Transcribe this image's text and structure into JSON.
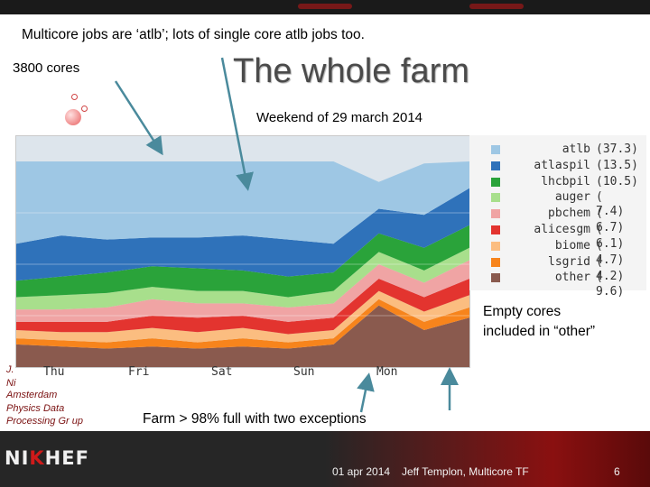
{
  "slide": {
    "subtitle": "Multicore jobs are ‘atlb’; lots of single core atlb jobs too.",
    "cores_label": "3800 cores",
    "title": "The whole farm",
    "period": "Weekend of 29 march 2014",
    "empty_note_line1": "Empty cores",
    "empty_note_line2": "included in “other”",
    "farm_note": "Farm > 98% full with two exceptions",
    "group_lines": [
      "J.",
      "Ni",
      "Amsterdam",
      "Physics Data",
      "Processing Gr  up"
    ]
  },
  "footer": {
    "date": "01 apr 2014",
    "author": "Jeff Templon, Multicore TF",
    "page": "6",
    "logo_parts": [
      "NI",
      "K",
      "HEF"
    ]
  },
  "colors": {
    "atlb": "#9ec7e4",
    "atlaspil": "#2f72ba",
    "lhcbpil": "#2aa33a",
    "auger": "#a8df8c",
    "pbchem": "#f0a4a4",
    "alicesgm": "#e3342f",
    "biome": "#fbbd80",
    "lsgrid": "#f7841c",
    "other": "#8a5a4e"
  },
  "chart_data": {
    "type": "area",
    "x_labels": [
      "Thu",
      "Fri",
      "Sat",
      "Sun",
      "Mon"
    ],
    "legend": [
      {
        "name": "atlb",
        "value": "37.3"
      },
      {
        "name": "atlaspil",
        "value": "13.5"
      },
      {
        "name": "lhcbpil",
        "value": "10.5"
      },
      {
        "name": "auger",
        "value": " 7.4"
      },
      {
        "name": "pbchem",
        "value": " 6.7"
      },
      {
        "name": "alicesgm",
        "value": " 6.1"
      },
      {
        "name": "biome",
        "value": " 4.7"
      },
      {
        "name": "lsgrid",
        "value": " 4.2"
      },
      {
        "name": "other",
        "value": " 9.6"
      }
    ],
    "legend_placement": "right",
    "stack_order": [
      "other",
      "lsgrid",
      "biome",
      "alicesgm",
      "pbchem",
      "auger",
      "lhcbpil",
      "atlaspil",
      "atlb"
    ],
    "x": [
      0,
      10,
      20,
      30,
      40,
      50,
      60,
      70,
      80,
      90,
      100
    ],
    "series": [
      {
        "name": "other",
        "values": [
          11,
          10,
          9,
          10,
          9,
          10,
          9,
          11,
          30,
          18,
          24
        ]
      },
      {
        "name": "lsgrid",
        "values": [
          3,
          3,
          3,
          4,
          3,
          4,
          3,
          3,
          3,
          4,
          5
        ]
      },
      {
        "name": "biome",
        "values": [
          4,
          4,
          5,
          5,
          5,
          5,
          4,
          4,
          4,
          5,
          6
        ]
      },
      {
        "name": "alicesgm",
        "values": [
          4,
          5,
          5,
          6,
          7,
          6,
          6,
          6,
          6,
          7,
          8
        ]
      },
      {
        "name": "pbchem",
        "values": [
          6,
          6,
          7,
          8,
          7,
          6,
          7,
          7,
          7,
          7,
          9
        ]
      },
      {
        "name": "auger",
        "values": [
          6,
          7,
          7,
          6,
          6,
          6,
          5,
          6,
          6,
          6,
          6
        ]
      },
      {
        "name": "lhcbpil",
        "values": [
          8,
          9,
          10,
          10,
          11,
          10,
          10,
          9,
          9,
          11,
          11
        ]
      },
      {
        "name": "atlaspil",
        "values": [
          18,
          20,
          16,
          14,
          15,
          17,
          18,
          14,
          12,
          16,
          18
        ]
      },
      {
        "name": "atlb",
        "values": [
          40,
          36,
          38,
          37,
          37,
          36,
          38,
          40,
          13,
          25,
          13
        ]
      }
    ],
    "ylim": [
      0,
      100
    ]
  }
}
